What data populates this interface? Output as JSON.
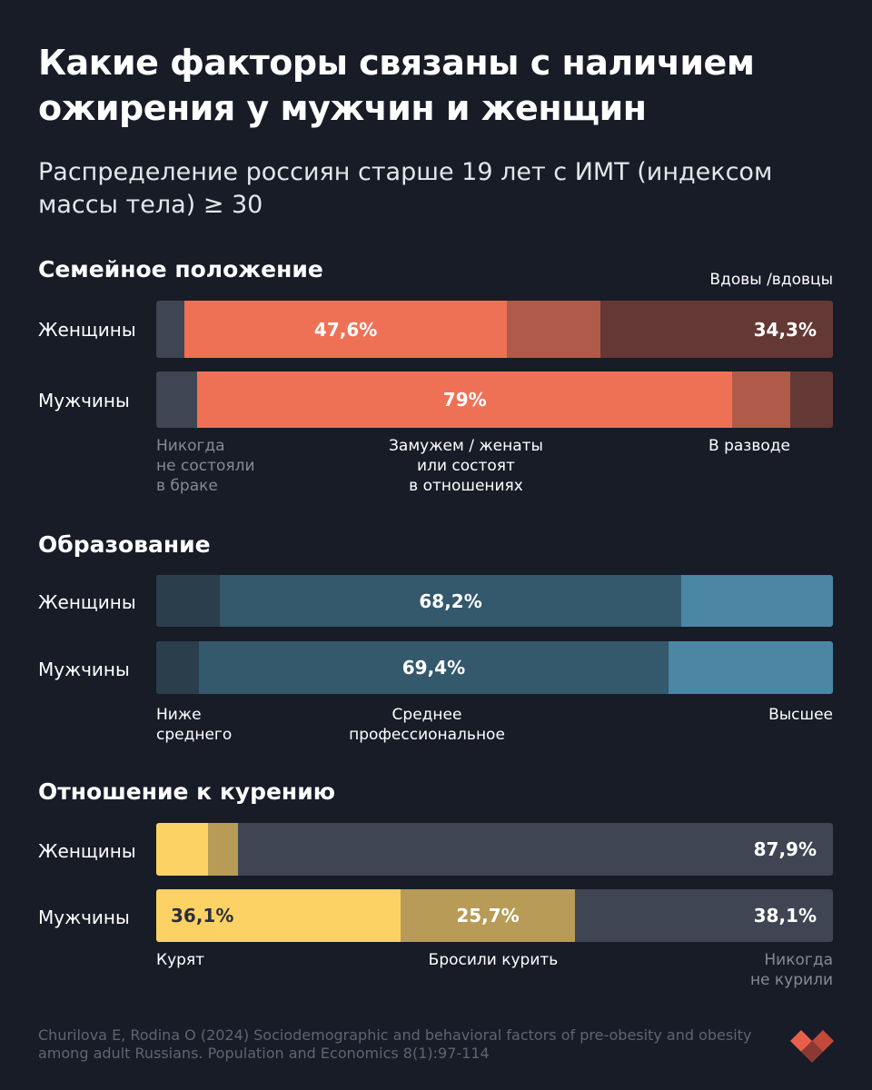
{
  "title": "Какие факторы связаны с наличием ожирения у мужчин и женщин",
  "subtitle": "Распределение россиян старше 19 лет с ИМТ (индексом массы тела) ≥ 30",
  "source": "Churilova E, Rodina O (2024) Sociodemographic and behavioral factors of pre-obesity and obesity among adult Russians. Population and Economics 8(1):97-114",
  "logo": "brand-logo-icon",
  "chart_data": [
    {
      "type": "bar",
      "stacked": true,
      "orientation": "horizontal",
      "title": "Семейное положение",
      "rows": [
        "Женщины",
        "Мужчины"
      ],
      "categories": [
        "Никогда не состояли в браке",
        "Замужем / женаты или состоят в отношениях",
        "В разводе",
        "Вдовы /вдовцы"
      ],
      "colors": [
        "#3f4552",
        "#ef7155",
        "#b05a4a",
        "#643835"
      ],
      "series": [
        {
          "name": "Женщины",
          "values": [
            4.2,
            47.6,
            13.9,
            34.3
          ],
          "shown_labels": [
            "",
            "47,6%",
            "",
            "34,3%"
          ]
        },
        {
          "name": "Мужчины",
          "values": [
            6.1,
            79,
            8.6,
            6.3
          ],
          "shown_labels": [
            "",
            "79%",
            "",
            ""
          ]
        }
      ],
      "legend": {
        "top_right": "Вдовы /вдовцы",
        "bottom": [
          "Никогда\nне состояли\nв браке",
          "Замужем / женаты\nили состоят\nв отношениях",
          "В разводе"
        ]
      }
    },
    {
      "type": "bar",
      "stacked": true,
      "orientation": "horizontal",
      "title": "Образование",
      "rows": [
        "Женщины",
        "Мужчины"
      ],
      "categories": [
        "Ниже среднего",
        "Среднее профессиональное",
        "Высшее"
      ],
      "colors": [
        "#2b3e4c",
        "#34586c",
        "#4b86a4"
      ],
      "series": [
        {
          "name": "Женщины",
          "values": [
            9.4,
            68.2,
            22.4
          ],
          "shown_labels": [
            "",
            "68,2%",
            ""
          ]
        },
        {
          "name": "Мужчины",
          "values": [
            6.3,
            69.4,
            24.3
          ],
          "shown_labels": [
            "",
            "69,4%",
            ""
          ]
        }
      ],
      "legend": {
        "bottom": [
          "Ниже\nсреднего",
          "Среднее\nпрофессиональное",
          "Высшее"
        ]
      }
    },
    {
      "type": "bar",
      "stacked": true,
      "orientation": "horizontal",
      "title": "Отношение к курению",
      "rows": [
        "Женщины",
        "Мужчины"
      ],
      "categories": [
        "Курят",
        "Бросили курить",
        "Никогда не курили"
      ],
      "colors": [
        "#fdd265",
        "#b79b56",
        "#3f4552"
      ],
      "series": [
        {
          "name": "Женщины",
          "values": [
            7.7,
            4.4,
            87.9
          ],
          "shown_labels": [
            "",
            "",
            "87,9%"
          ]
        },
        {
          "name": "Мужчины",
          "values": [
            36.1,
            25.7,
            38.1
          ],
          "shown_labels": [
            "36,1%",
            "25,7%",
            "38,1%"
          ]
        }
      ],
      "legend": {
        "bottom": [
          "Курят",
          "Бросили курить",
          "Никогда\nне курили"
        ]
      }
    }
  ]
}
